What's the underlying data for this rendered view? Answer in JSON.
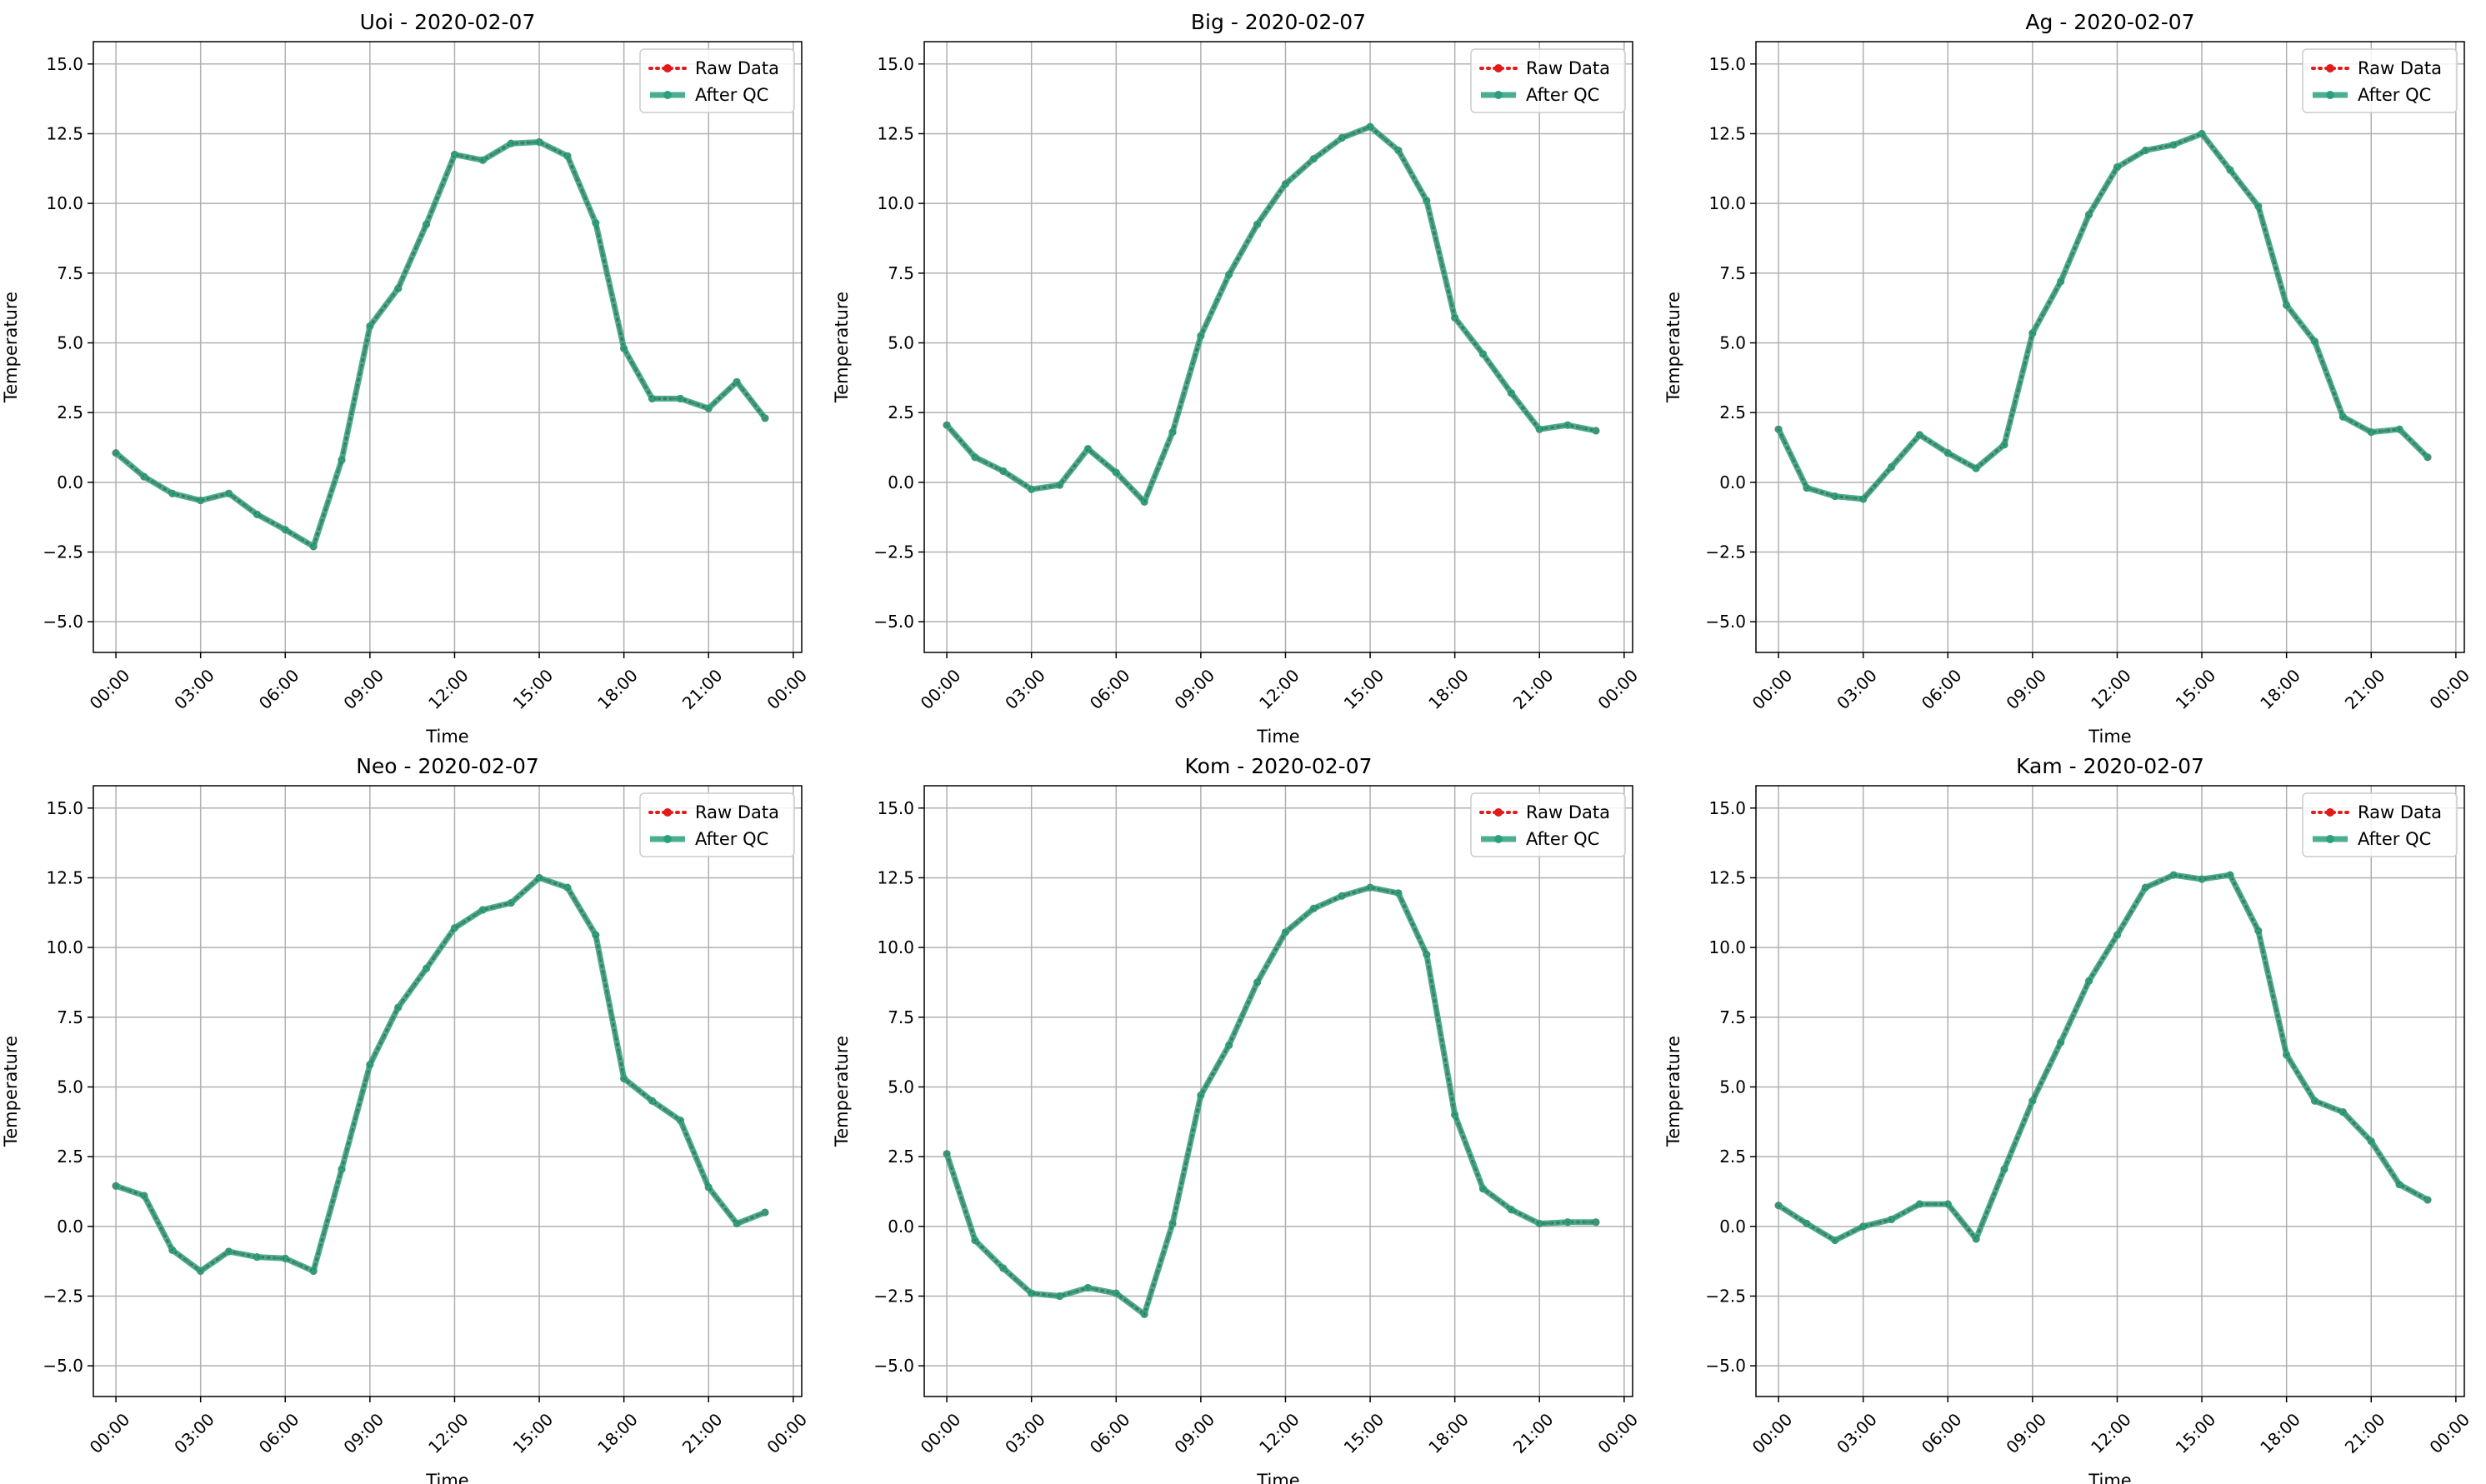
{
  "chart_data": [
    {
      "type": "line",
      "title": "Uoi - 2020-02-07",
      "xlabel": "Time",
      "ylabel": "Temperature",
      "x": [
        "00:00",
        "01:00",
        "02:00",
        "03:00",
        "04:00",
        "05:00",
        "06:00",
        "07:00",
        "08:00",
        "09:00",
        "10:00",
        "11:00",
        "12:00",
        "13:00",
        "14:00",
        "15:00",
        "16:00",
        "17:00",
        "18:00",
        "19:00",
        "20:00",
        "21:00",
        "22:00",
        "23:00"
      ],
      "xticks": [
        "00:00",
        "03:00",
        "06:00",
        "09:00",
        "12:00",
        "15:00",
        "18:00",
        "21:00",
        "00:00"
      ],
      "yticks": [
        "−5.0",
        "−2.5",
        "0.0",
        "2.5",
        "5.0",
        "7.5",
        "10.0",
        "12.5",
        "15.0"
      ],
      "ylim": [
        -6.1,
        15.8
      ],
      "grid": true,
      "legend": "top-right",
      "series": [
        {
          "name": "Raw Data",
          "color": "#e31a1c",
          "style": "dotted",
          "values": [
            1.05,
            0.2,
            -0.4,
            -0.65,
            -0.4,
            -1.15,
            -1.7,
            -2.3,
            0.8,
            5.6,
            6.95,
            9.25,
            11.75,
            11.55,
            12.15,
            12.2,
            11.7,
            9.3,
            4.8,
            3.0,
            3.0,
            2.65,
            3.6,
            2.3
          ]
        },
        {
          "name": "After QC",
          "color": "#2ca07c",
          "style": "solid",
          "values": [
            1.05,
            0.2,
            -0.4,
            -0.65,
            -0.4,
            -1.15,
            -1.7,
            -2.3,
            0.8,
            5.6,
            6.95,
            9.25,
            11.75,
            11.55,
            12.15,
            12.2,
            11.7,
            9.3,
            4.8,
            3.0,
            3.0,
            2.65,
            3.6,
            2.3
          ]
        }
      ]
    },
    {
      "type": "line",
      "title": "Big - 2020-02-07",
      "xlabel": "Time",
      "ylabel": "Temperature",
      "x": [
        "00:00",
        "01:00",
        "02:00",
        "03:00",
        "04:00",
        "05:00",
        "06:00",
        "07:00",
        "08:00",
        "09:00",
        "10:00",
        "11:00",
        "12:00",
        "13:00",
        "14:00",
        "15:00",
        "16:00",
        "17:00",
        "18:00",
        "19:00",
        "20:00",
        "21:00",
        "22:00",
        "23:00"
      ],
      "xticks": [
        "00:00",
        "03:00",
        "06:00",
        "09:00",
        "12:00",
        "15:00",
        "18:00",
        "21:00",
        "00:00"
      ],
      "yticks": [
        "−5.0",
        "−2.5",
        "0.0",
        "2.5",
        "5.0",
        "7.5",
        "10.0",
        "12.5",
        "15.0"
      ],
      "ylim": [
        -6.1,
        15.8
      ],
      "grid": true,
      "legend": "top-right",
      "series": [
        {
          "name": "Raw Data",
          "color": "#e31a1c",
          "style": "dotted",
          "values": [
            2.05,
            0.9,
            0.4,
            -0.25,
            -0.1,
            1.2,
            0.35,
            -0.7,
            1.8,
            5.25,
            7.45,
            9.25,
            10.7,
            11.6,
            12.35,
            12.75,
            11.9,
            10.1,
            5.9,
            4.6,
            3.2,
            1.9,
            2.05,
            1.85
          ]
        },
        {
          "name": "After QC",
          "color": "#2ca07c",
          "style": "solid",
          "values": [
            2.05,
            0.9,
            0.4,
            -0.25,
            -0.1,
            1.2,
            0.35,
            -0.7,
            1.8,
            5.25,
            7.45,
            9.25,
            10.7,
            11.6,
            12.35,
            12.75,
            11.9,
            10.1,
            5.9,
            4.6,
            3.2,
            1.9,
            2.05,
            1.85
          ]
        }
      ]
    },
    {
      "type": "line",
      "title": "Ag - 2020-02-07",
      "xlabel": "Time",
      "ylabel": "Temperature",
      "x": [
        "00:00",
        "01:00",
        "02:00",
        "03:00",
        "04:00",
        "05:00",
        "06:00",
        "07:00",
        "08:00",
        "09:00",
        "10:00",
        "11:00",
        "12:00",
        "13:00",
        "14:00",
        "15:00",
        "16:00",
        "17:00",
        "18:00",
        "19:00",
        "20:00",
        "21:00",
        "22:00",
        "23:00"
      ],
      "xticks": [
        "00:00",
        "03:00",
        "06:00",
        "09:00",
        "12:00",
        "15:00",
        "18:00",
        "21:00",
        "00:00"
      ],
      "yticks": [
        "−5.0",
        "−2.5",
        "0.0",
        "2.5",
        "5.0",
        "7.5",
        "10.0",
        "12.5",
        "15.0"
      ],
      "ylim": [
        -6.1,
        15.8
      ],
      "grid": true,
      "legend": "top-right",
      "series": [
        {
          "name": "Raw Data",
          "color": "#e31a1c",
          "style": "dotted",
          "values": [
            1.9,
            -0.2,
            -0.5,
            -0.6,
            0.55,
            1.7,
            1.05,
            0.5,
            1.35,
            5.35,
            7.2,
            9.6,
            11.3,
            11.9,
            12.1,
            12.5,
            11.2,
            9.9,
            6.35,
            5.05,
            2.35,
            1.8,
            1.9,
            0.9
          ]
        },
        {
          "name": "After QC",
          "color": "#2ca07c",
          "style": "solid",
          "values": [
            1.9,
            -0.2,
            -0.5,
            -0.6,
            0.55,
            1.7,
            1.05,
            0.5,
            1.35,
            5.35,
            7.2,
            9.6,
            11.3,
            11.9,
            12.1,
            12.5,
            11.2,
            9.9,
            6.35,
            5.05,
            2.35,
            1.8,
            1.9,
            0.9
          ]
        }
      ]
    },
    {
      "type": "line",
      "title": "Neo - 2020-02-07",
      "xlabel": "Time",
      "ylabel": "Temperature",
      "x": [
        "00:00",
        "01:00",
        "02:00",
        "03:00",
        "04:00",
        "05:00",
        "06:00",
        "07:00",
        "08:00",
        "09:00",
        "10:00",
        "11:00",
        "12:00",
        "13:00",
        "14:00",
        "15:00",
        "16:00",
        "17:00",
        "18:00",
        "19:00",
        "20:00",
        "21:00",
        "22:00",
        "23:00"
      ],
      "xticks": [
        "00:00",
        "03:00",
        "06:00",
        "09:00",
        "12:00",
        "15:00",
        "18:00",
        "21:00",
        "00:00"
      ],
      "yticks": [
        "−5.0",
        "−2.5",
        "0.0",
        "2.5",
        "5.0",
        "7.5",
        "10.0",
        "12.5",
        "15.0"
      ],
      "ylim": [
        -6.1,
        15.8
      ],
      "grid": true,
      "legend": "top-right",
      "series": [
        {
          "name": "Raw Data",
          "color": "#e31a1c",
          "style": "dotted",
          "values": [
            1.45,
            1.1,
            -0.85,
            -1.6,
            -0.9,
            -1.1,
            -1.15,
            -1.6,
            2.05,
            5.8,
            7.85,
            9.25,
            10.7,
            11.35,
            11.6,
            12.5,
            12.15,
            10.45,
            5.3,
            4.5,
            3.8,
            1.4,
            0.1,
            0.5
          ]
        },
        {
          "name": "After QC",
          "color": "#2ca07c",
          "style": "solid",
          "values": [
            1.45,
            1.1,
            -0.85,
            -1.6,
            -0.9,
            -1.1,
            -1.15,
            -1.6,
            2.05,
            5.8,
            7.85,
            9.25,
            10.7,
            11.35,
            11.6,
            12.5,
            12.15,
            10.45,
            5.3,
            4.5,
            3.8,
            1.4,
            0.1,
            0.5
          ]
        }
      ]
    },
    {
      "type": "line",
      "title": "Kom - 2020-02-07",
      "xlabel": "Time",
      "ylabel": "Temperature",
      "x": [
        "00:00",
        "01:00",
        "02:00",
        "03:00",
        "04:00",
        "05:00",
        "06:00",
        "07:00",
        "08:00",
        "09:00",
        "10:00",
        "11:00",
        "12:00",
        "13:00",
        "14:00",
        "15:00",
        "16:00",
        "17:00",
        "18:00",
        "19:00",
        "20:00",
        "21:00",
        "22:00",
        "23:00"
      ],
      "xticks": [
        "00:00",
        "03:00",
        "06:00",
        "09:00",
        "12:00",
        "15:00",
        "18:00",
        "21:00",
        "00:00"
      ],
      "yticks": [
        "−5.0",
        "−2.5",
        "0.0",
        "2.5",
        "5.0",
        "7.5",
        "10.0",
        "12.5",
        "15.0"
      ],
      "ylim": [
        -6.1,
        15.8
      ],
      "grid": true,
      "legend": "top-right",
      "series": [
        {
          "name": "Raw Data",
          "color": "#e31a1c",
          "style": "dotted",
          "values": [
            2.6,
            -0.5,
            -1.5,
            -2.4,
            -2.5,
            -2.2,
            -2.4,
            -3.15,
            0.1,
            4.7,
            6.5,
            8.75,
            10.55,
            11.4,
            11.85,
            12.15,
            11.95,
            9.75,
            4.0,
            1.35,
            0.6,
            0.1,
            0.15,
            0.15
          ]
        },
        {
          "name": "After QC",
          "color": "#2ca07c",
          "style": "solid",
          "values": [
            2.6,
            -0.5,
            -1.5,
            -2.4,
            -2.5,
            -2.2,
            -2.4,
            -3.15,
            0.1,
            4.7,
            6.5,
            8.75,
            10.55,
            11.4,
            11.85,
            12.15,
            11.95,
            9.75,
            4.0,
            1.35,
            0.6,
            0.1,
            0.15,
            0.15
          ]
        }
      ]
    },
    {
      "type": "line",
      "title": "Kam - 2020-02-07",
      "xlabel": "Time",
      "ylabel": "Temperature",
      "x": [
        "00:00",
        "01:00",
        "02:00",
        "03:00",
        "04:00",
        "05:00",
        "06:00",
        "07:00",
        "08:00",
        "09:00",
        "10:00",
        "11:00",
        "12:00",
        "13:00",
        "14:00",
        "15:00",
        "16:00",
        "17:00",
        "18:00",
        "19:00",
        "20:00",
        "21:00",
        "22:00",
        "23:00"
      ],
      "xticks": [
        "00:00",
        "03:00",
        "06:00",
        "09:00",
        "12:00",
        "15:00",
        "18:00",
        "21:00",
        "00:00"
      ],
      "yticks": [
        "−5.0",
        "−2.5",
        "0.0",
        "2.5",
        "5.0",
        "7.5",
        "10.0",
        "12.5",
        "15.0"
      ],
      "ylim": [
        -6.1,
        15.8
      ],
      "grid": true,
      "legend": "top-right",
      "series": [
        {
          "name": "Raw Data",
          "color": "#e31a1c",
          "style": "dotted",
          "values": [
            0.75,
            0.1,
            -0.5,
            0.0,
            0.25,
            0.8,
            0.8,
            -0.45,
            2.05,
            4.5,
            6.6,
            8.8,
            10.45,
            12.15,
            12.6,
            12.45,
            12.6,
            10.6,
            6.15,
            4.5,
            4.1,
            3.05,
            1.5,
            0.95
          ]
        },
        {
          "name": "After QC",
          "color": "#2ca07c",
          "style": "solid",
          "values": [
            0.75,
            0.1,
            -0.5,
            0.0,
            0.25,
            0.8,
            0.8,
            -0.45,
            2.05,
            4.5,
            6.6,
            8.8,
            10.45,
            12.15,
            12.6,
            12.45,
            12.6,
            10.6,
            6.15,
            4.5,
            4.1,
            3.05,
            1.5,
            0.95
          ]
        }
      ]
    }
  ]
}
